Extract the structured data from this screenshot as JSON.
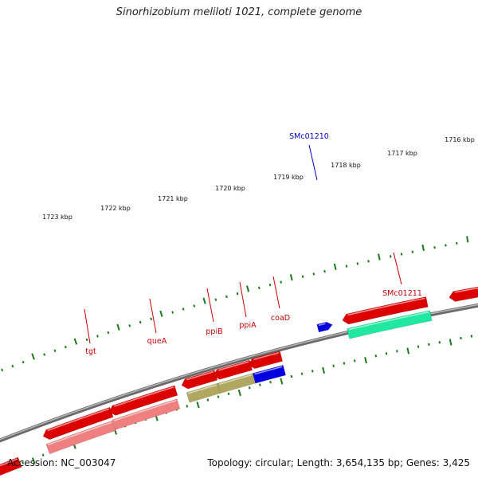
{
  "title": "Sinorhizobium meliloti 1021, complete genome",
  "footer": {
    "accession": "Accession: NC_003047",
    "stats": "Topology: circular; Length: 3,654,135 bp; Genes: 3,425"
  },
  "ruler": [
    {
      "label": "1716 kbp",
      "kbp": 1716
    },
    {
      "label": "1717 kbp",
      "kbp": 1717
    },
    {
      "label": "1718 kbp",
      "kbp": 1718
    },
    {
      "label": "1719 kbp",
      "kbp": 1719
    },
    {
      "label": "1720 kbp",
      "kbp": 1720
    },
    {
      "label": "1721 kbp",
      "kbp": 1721
    },
    {
      "label": "1722 kbp",
      "kbp": 1722
    },
    {
      "label": "1723 kbp",
      "kbp": 1723
    }
  ],
  "genes": [
    {
      "label": "SMc01210",
      "color": "#0000cc"
    },
    {
      "label": "SMc01211",
      "color": "#cc0000"
    },
    {
      "label": "coaD",
      "color": "#cc0000"
    },
    {
      "label": "ppiA",
      "color": "#cc0000"
    },
    {
      "label": "ppiB",
      "color": "#cc0000"
    },
    {
      "label": "queA",
      "color": "#cc0000"
    },
    {
      "label": "tgt",
      "color": "#cc0000"
    }
  ],
  "colors": {
    "backbone": "#808080",
    "tick": "#1a7a1a",
    "cds": "#dd0000",
    "cog_light_red": "#f08080",
    "cog_olive": "#b0a860",
    "cog_blue": "#0000e0",
    "cog_green": "#20e8a0"
  }
}
